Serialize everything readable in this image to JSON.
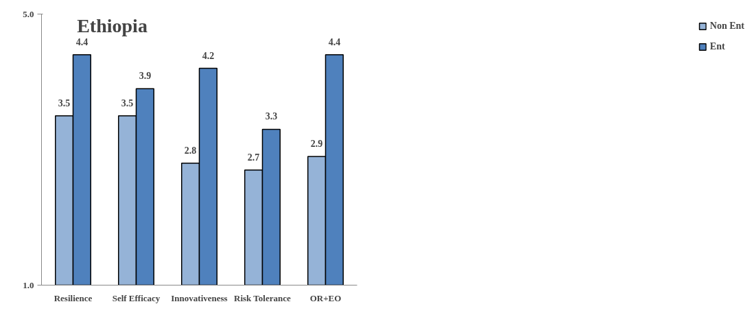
{
  "chart_data": {
    "type": "bar",
    "title": "Ethiopia",
    "categories": [
      "Resilience",
      "Self Efficacy",
      "Innovativeness",
      "Risk Tolerance",
      "OR+EO"
    ],
    "series": [
      {
        "name": "Non Ent",
        "color": "#95b3d7",
        "values": [
          3.5,
          3.5,
          2.8,
          2.7,
          2.9
        ]
      },
      {
        "name": "Ent",
        "color": "#4f81bd",
        "values": [
          4.4,
          3.9,
          4.2,
          3.3,
          4.4
        ]
      }
    ],
    "ylim": [
      1.0,
      5.0
    ],
    "yticks": [
      {
        "value": 1.0,
        "label": "1.0"
      },
      {
        "value": 5.0,
        "label": "5.0"
      }
    ],
    "data_labels": true,
    "grid": false,
    "legend": "right"
  }
}
